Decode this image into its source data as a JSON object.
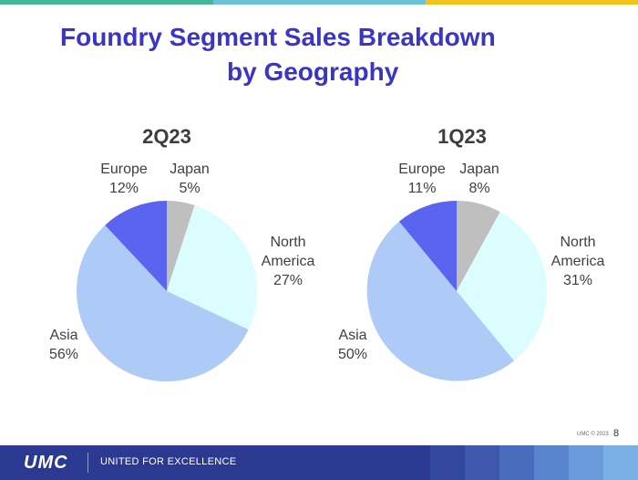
{
  "title_line1": "Foundry Segment Sales Breakdown",
  "title_line2": "by Geography",
  "colors": {
    "title": "#3a35c4",
    "japan": "#bfbfbf",
    "north_america": "#dcfdfd",
    "asia": "#aecbf8",
    "europe": "#5a64ee",
    "footer": "#2b3990",
    "topbar": [
      "#46b59a",
      "#6bc2d9",
      "#f2c31b"
    ],
    "footer_blocks": [
      "#34479e",
      "#3d58ad",
      "#4a6cbd",
      "#5a84cd",
      "#6b9adb",
      "#7bb0e6"
    ]
  },
  "chart_data": [
    {
      "type": "pie",
      "title": "2Q23",
      "start_angle_deg": 0,
      "direction": "clockwise",
      "slices": [
        {
          "label_lines": [
            "Japan",
            "5%"
          ],
          "value": 5,
          "color_key": "japan"
        },
        {
          "label_lines": [
            "North",
            "America",
            "27%"
          ],
          "value": 27,
          "color_key": "north_america"
        },
        {
          "label_lines": [
            "Asia",
            "56%"
          ],
          "value": 56,
          "color_key": "asia"
        },
        {
          "label_lines": [
            "Europe",
            "12%"
          ],
          "value": 12,
          "color_key": "europe"
        }
      ]
    },
    {
      "type": "pie",
      "title": "1Q23",
      "start_angle_deg": 0,
      "direction": "clockwise",
      "slices": [
        {
          "label_lines": [
            "Japan",
            "8%"
          ],
          "value": 8,
          "color_key": "japan"
        },
        {
          "label_lines": [
            "North",
            "America",
            "31%"
          ],
          "value": 31,
          "color_key": "north_america"
        },
        {
          "label_lines": [
            "Asia",
            "50%"
          ],
          "value": 50,
          "color_key": "asia"
        },
        {
          "label_lines": [
            "Europe",
            "11%"
          ],
          "value": 11,
          "color_key": "europe"
        }
      ]
    }
  ],
  "footer": {
    "logo": "UMC",
    "tagline": "UNITED FOR EXCELLENCE",
    "copyright": "UMC © 2023",
    "page_number": "8"
  },
  "icons": {
    "logo": "umc-logo"
  }
}
